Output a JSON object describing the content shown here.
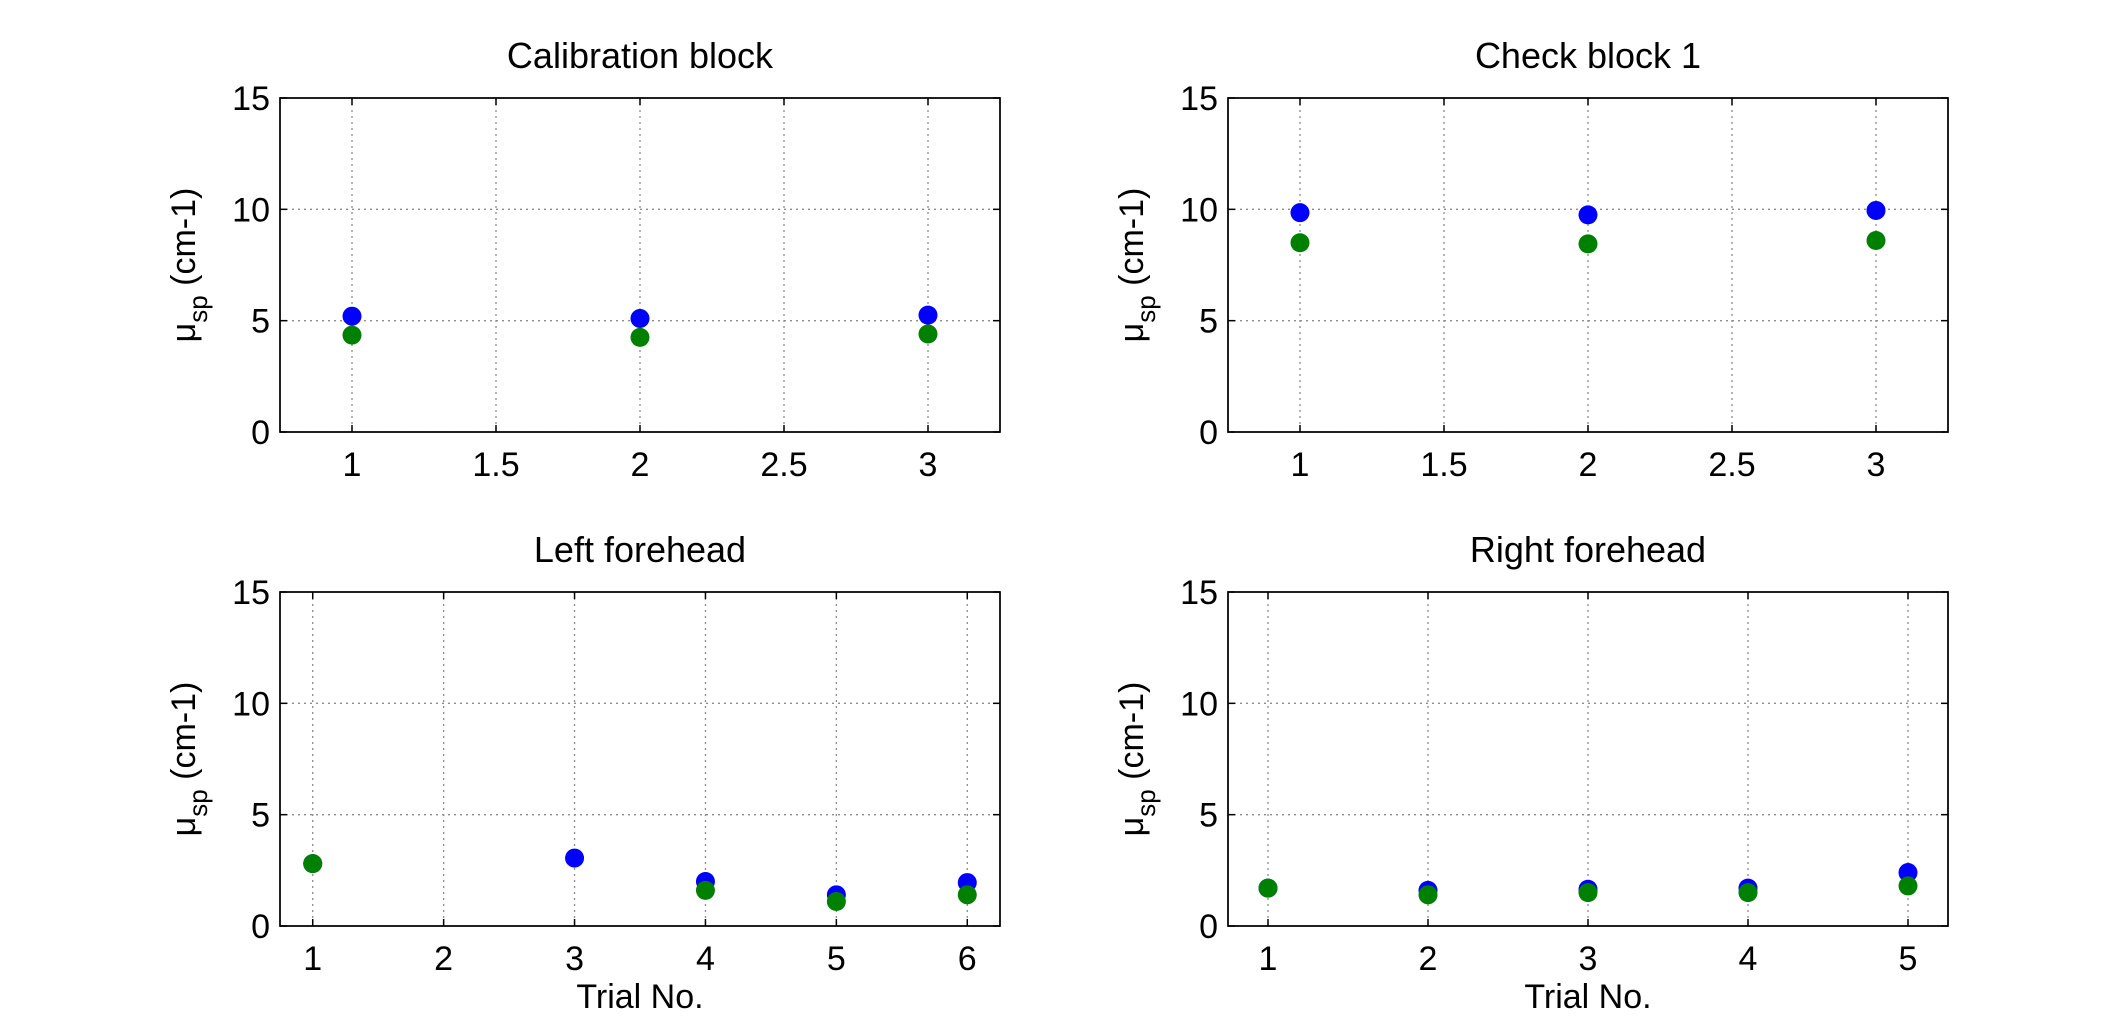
{
  "colors": {
    "series_1": "#0000ff",
    "series_2": "#008000",
    "background": "#ffffff",
    "axes": "#000000",
    "grid": "#8c8c8c"
  },
  "chart_data": [
    {
      "type": "scatter",
      "title": "Calibration block",
      "ylabel_main": "μ",
      "ylabel_sub": "sp",
      "ylabel_unit": " (cm-1)",
      "xlabel": "",
      "xlim": [
        0.75,
        3.25
      ],
      "ylim": [
        0,
        15
      ],
      "xticks": [
        1,
        1.5,
        2,
        2.5,
        3
      ],
      "xtick_labels": [
        "1",
        "1.5",
        "2",
        "2.5",
        "3"
      ],
      "yticks": [
        0,
        5,
        10,
        15
      ],
      "ytick_labels": [
        "0",
        "5",
        "10",
        "15"
      ],
      "grid": true,
      "series": [
        {
          "color": "#0000ff",
          "x": [
            1,
            2,
            3
          ],
          "y": [
            5.2,
            5.1,
            5.25
          ]
        },
        {
          "color": "#008000",
          "x": [
            1,
            2,
            3
          ],
          "y": [
            4.35,
            4.25,
            4.4
          ]
        }
      ]
    },
    {
      "type": "scatter",
      "title": "Check block 1",
      "ylabel_main": "μ",
      "ylabel_sub": "sp",
      "ylabel_unit": " (cm-1)",
      "xlabel": "",
      "xlim": [
        0.75,
        3.25
      ],
      "ylim": [
        0,
        15
      ],
      "xticks": [
        1,
        1.5,
        2,
        2.5,
        3
      ],
      "xtick_labels": [
        "1",
        "1.5",
        "2",
        "2.5",
        "3"
      ],
      "yticks": [
        0,
        5,
        10,
        15
      ],
      "ytick_labels": [
        "0",
        "5",
        "10",
        "15"
      ],
      "grid": true,
      "series": [
        {
          "color": "#0000ff",
          "x": [
            1,
            2,
            3
          ],
          "y": [
            9.85,
            9.75,
            9.95
          ]
        },
        {
          "color": "#008000",
          "x": [
            1,
            2,
            3
          ],
          "y": [
            8.5,
            8.45,
            8.6
          ]
        }
      ]
    },
    {
      "type": "scatter",
      "title": "Left forehead",
      "ylabel_main": "μ",
      "ylabel_sub": "sp",
      "ylabel_unit": " (cm-1)",
      "xlabel": "Trial No.",
      "xlim": [
        0.75,
        6.25
      ],
      "ylim": [
        0,
        15
      ],
      "xticks": [
        1,
        2,
        3,
        4,
        5,
        6
      ],
      "xtick_labels": [
        "1",
        "2",
        "3",
        "4",
        "5",
        "6"
      ],
      "yticks": [
        0,
        5,
        10,
        15
      ],
      "ytick_labels": [
        "0",
        "5",
        "10",
        "15"
      ],
      "grid": true,
      "series": [
        {
          "color": "#0000ff",
          "x": [
            1,
            3,
            4,
            5,
            6
          ],
          "y": [
            2.8,
            3.05,
            2.0,
            1.4,
            1.95
          ]
        },
        {
          "color": "#008000",
          "x": [
            1,
            4,
            5,
            6
          ],
          "y": [
            2.8,
            1.6,
            1.1,
            1.4
          ]
        }
      ]
    },
    {
      "type": "scatter",
      "title": "Right forehead",
      "ylabel_main": "μ",
      "ylabel_sub": "sp",
      "ylabel_unit": " (cm-1)",
      "xlabel": "Trial No.",
      "xlim": [
        0.75,
        5.25
      ],
      "ylim": [
        0,
        15
      ],
      "xticks": [
        1,
        2,
        3,
        4,
        5
      ],
      "xtick_labels": [
        "1",
        "2",
        "3",
        "4",
        "5"
      ],
      "yticks": [
        0,
        5,
        10,
        15
      ],
      "ytick_labels": [
        "0",
        "5",
        "10",
        "15"
      ],
      "grid": true,
      "series": [
        {
          "color": "#0000ff",
          "x": [
            1,
            2,
            3,
            4,
            5
          ],
          "y": [
            1.7,
            1.6,
            1.65,
            1.7,
            2.4
          ]
        },
        {
          "color": "#008000",
          "x": [
            1,
            2,
            3,
            4,
            5
          ],
          "y": [
            1.7,
            1.4,
            1.5,
            1.5,
            1.8
          ]
        }
      ]
    }
  ]
}
